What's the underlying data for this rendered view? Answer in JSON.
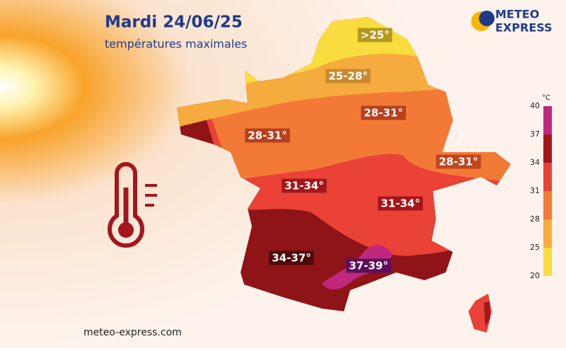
{
  "header": {
    "title": "Mardi 24/06/25",
    "subtitle": "températures maximales"
  },
  "logo": {
    "line1": "METEO",
    "line2": "EXPRESS"
  },
  "zones": [
    {
      "label": ">25°",
      "color": "#b39a1e"
    },
    {
      "label": "25-28°",
      "color": "#c98a2e"
    },
    {
      "label": "28-31°",
      "color": "#b8401e"
    },
    {
      "label": "28-31°",
      "color": "#b8401e"
    },
    {
      "label": "28-31°",
      "color": "#c0461e"
    },
    {
      "label": "31-34°",
      "color": "#a5161a"
    },
    {
      "label": "31-34°",
      "color": "#a5161a"
    },
    {
      "label": "34-37°",
      "color": "#4e0a0a"
    },
    {
      "label": "37-39°",
      "color": "#5e0f5a"
    }
  ],
  "legend": {
    "unit": "°C",
    "ticks": [
      40,
      37,
      34,
      31,
      28,
      25,
      20
    ],
    "colors": [
      "#c0287e",
      "#a3161e",
      "#ea4236",
      "#f27a36",
      "#f6ab3e",
      "#f9dc3e"
    ]
  },
  "footer": {
    "website": "meteo-express.com"
  }
}
